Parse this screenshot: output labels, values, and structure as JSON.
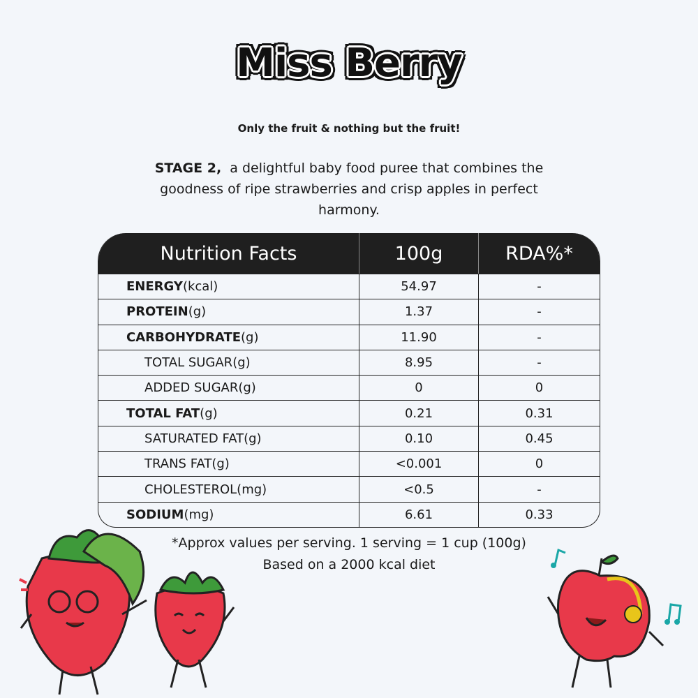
{
  "header": {
    "title": "Miss Berry",
    "tagline": "Only the fruit & nothing but the fruit!"
  },
  "intro": {
    "stage": "STAGE 2,",
    "text": "a delightful baby food puree that combines the goodness of ripe strawberries and crisp apples in perfect harmony."
  },
  "table": {
    "columns": [
      "Nutrition Facts",
      "100g",
      "RDA%*"
    ],
    "rows": [
      {
        "name": "ENERGY",
        "unit": "(kcal)",
        "per_100g": "54.97",
        "rda": "-"
      },
      {
        "name": "PROTEIN",
        "unit": "(g)",
        "per_100g": "1.37",
        "rda": "-"
      },
      {
        "name": "CARBOHYDRATE",
        "unit": "(g)",
        "per_100g": "11.90",
        "rda": "-",
        "sub": [
          {
            "name": "TOTAL SUGAR",
            "unit": "(g)",
            "per_100g": "8.95",
            "rda": "-"
          },
          {
            "name": "ADDED SUGAR",
            "unit": "(g)",
            "per_100g": "0",
            "rda": "0"
          }
        ]
      },
      {
        "name": "TOTAL FAT",
        "unit": "(g)",
        "per_100g": "0.21",
        "rda": "0.31",
        "sub": [
          {
            "name": "SATURATED FAT",
            "unit": "(g)",
            "per_100g": "0.10",
            "rda": "0.45"
          },
          {
            "name": "TRANS FAT",
            "unit": "(g)",
            "per_100g": "<0.001",
            "rda": "0"
          },
          {
            "name": "CHOLESTEROL",
            "unit": "(mg)",
            "per_100g": "<0.5",
            "rda": "-"
          }
        ]
      },
      {
        "name": "SODIUM",
        "unit": "(mg)",
        "per_100g": "6.61",
        "rda": "0.33"
      }
    ]
  },
  "footnotes": [
    "*Approx values per serving. 1 serving = 1 cup (100g)",
    "Based on a 2000 kcal diet"
  ]
}
